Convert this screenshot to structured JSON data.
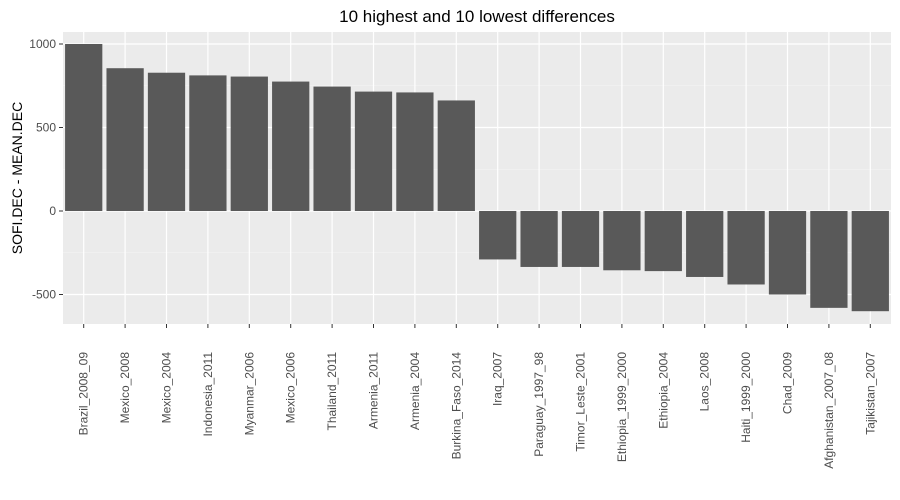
{
  "chart_data": {
    "type": "bar",
    "title": "10 highest and 10 lowest differences",
    "xlabel": "",
    "ylabel": "SOFI.DEC - MEAN.DEC",
    "categories": [
      "Brazil_2008_09",
      "Mexico_2008",
      "Mexico_2004",
      "Indonesia_2011",
      "Myanmar_2006",
      "Mexico_2006",
      "Thailand_2011",
      "Armenia_2011",
      "Armenia_2004",
      "Burkina_Faso_2014",
      "Iraq_2007",
      "Paraguay_1997_98",
      "Timor_Leste_2001",
      "Ethiopia_1999_2000",
      "Ethiopia_2004",
      "Laos_2008",
      "Haiti_1999_2000",
      "Chad_2009",
      "Afghanistan_2007_08",
      "Tajikistan_2007"
    ],
    "values": [
      1000,
      855,
      828,
      812,
      805,
      775,
      745,
      715,
      710,
      662,
      -290,
      -335,
      -335,
      -355,
      -360,
      -395,
      -440,
      -500,
      -580,
      -600
    ],
    "yticks": [
      -500,
      0,
      500,
      1000
    ],
    "ytick_labels": [
      "-500",
      "0",
      "500",
      "1000"
    ],
    "ylim": [
      -670,
      1060
    ],
    "grid": true,
    "bar_color": "#595959",
    "panel_color": "#ebebeb",
    "grid_color": "#ffffff"
  }
}
